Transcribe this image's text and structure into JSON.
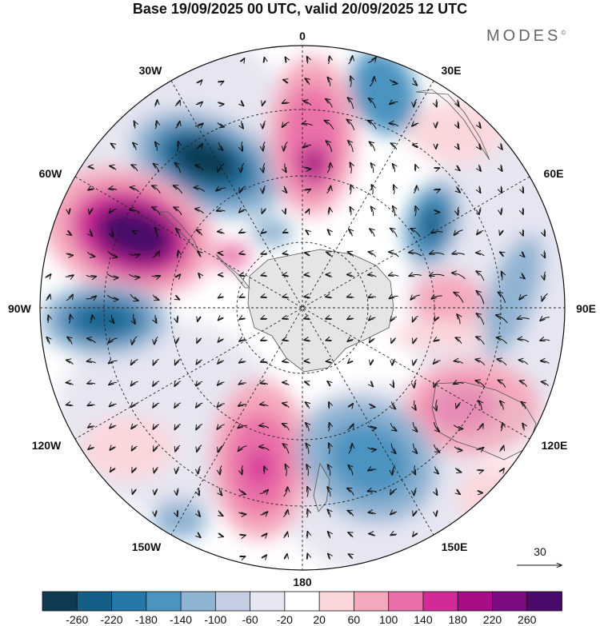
{
  "title": "Base 19/09/2025 00 UTC, valid 20/09/2025 12 UTC",
  "brand": {
    "name": "MODES",
    "mark": "©"
  },
  "longitude_labels": {
    "top": "0",
    "bottom": "180",
    "left": "90W",
    "right": "90E",
    "upper_left": "30W",
    "upper_right": "30E",
    "mid_upper_left": "60W",
    "mid_upper_right": "60E",
    "mid_lower_left": "120W",
    "mid_lower_right": "120E",
    "lower_left": "150W",
    "lower_right": "150E"
  },
  "vector_reference": {
    "value": "30"
  },
  "colorbar": {
    "ticks": [
      "-260",
      "-220",
      "-180",
      "-140",
      "-100",
      "-60",
      "-20",
      "20",
      "60",
      "100",
      "140",
      "180",
      "220",
      "260"
    ],
    "colors": [
      "#0e3a52",
      "#135f87",
      "#2678a8",
      "#4b93c0",
      "#8fb3d2",
      "#c3cee3",
      "#e6e6f2",
      "#ffffff",
      "#fbd7db",
      "#f5a8bb",
      "#ea6fa8",
      "#d22a96",
      "#a80d86",
      "#7b0a83",
      "#4a0a6b"
    ]
  },
  "anomaly_colors": {
    "land": "#dcdcdc",
    "coast": "#555555",
    "grid": "#222222",
    "arrow": "#111111"
  }
}
